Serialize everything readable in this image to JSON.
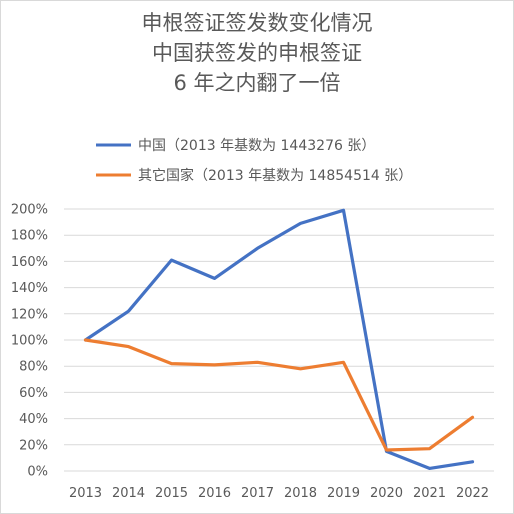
{
  "chart_data": {
    "type": "line",
    "title_lines": [
      "申根签证签发数变化情况",
      "中国获签发的申根签证",
      "6 年之内翻了一倍"
    ],
    "categories": [
      "2013",
      "2014",
      "2015",
      "2016",
      "2017",
      "2018",
      "2019",
      "2020",
      "2021",
      "2022"
    ],
    "y_tick_labels": [
      "0%",
      "20%",
      "40%",
      "60%",
      "80%",
      "100%",
      "120%",
      "140%",
      "160%",
      "180%",
      "200%"
    ],
    "ylim": [
      0,
      200
    ],
    "grid": true,
    "legend_position": "top",
    "series": [
      {
        "name": "中国（2013 年基数为 1443276 张）",
        "color": "#4472c4",
        "values": [
          100,
          122,
          161,
          147,
          170,
          189,
          199,
          15,
          2,
          7
        ]
      },
      {
        "name": "其它国家（2013 年基数为 14854514 张）",
        "color": "#ed7d31",
        "values": [
          100,
          95,
          82,
          81,
          83,
          78,
          83,
          16,
          17,
          41
        ]
      }
    ]
  }
}
